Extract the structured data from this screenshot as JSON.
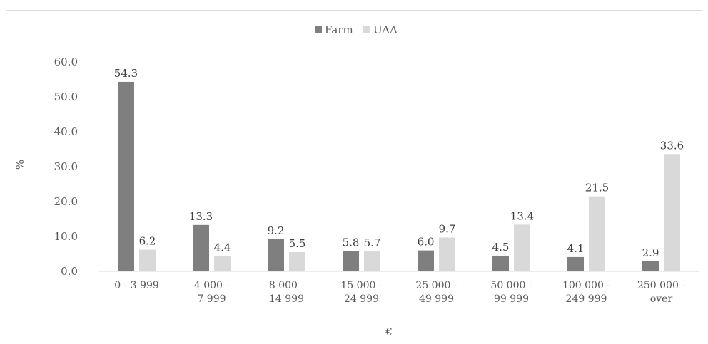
{
  "chart_data": {
    "type": "bar",
    "title": "",
    "xlabel": "€",
    "ylabel": "%",
    "ylim": [
      0,
      60
    ],
    "yticks": [
      "0.0",
      "10.0",
      "20.0",
      "30.0",
      "40.0",
      "50.0",
      "60.0"
    ],
    "legend_position": "top-center",
    "categories": [
      [
        "0 - 3 999"
      ],
      [
        "4 000 -",
        "7 999"
      ],
      [
        "8 000 -",
        "14 999"
      ],
      [
        "15 000 -",
        "24 999"
      ],
      [
        "25 000 -",
        "49 999"
      ],
      [
        "50 000 -",
        "99 999"
      ],
      [
        "100 000 -",
        "249 999"
      ],
      [
        "250 000 -",
        "over"
      ]
    ],
    "series": [
      {
        "name": "Farm",
        "color": "#7f7f7f",
        "values": [
          54.3,
          13.3,
          9.2,
          5.8,
          6.0,
          4.5,
          4.1,
          2.9
        ],
        "labels": [
          "54.3",
          "13.3",
          "9.2",
          "5.8",
          "6.0",
          "4.5",
          "4.1",
          "2.9"
        ]
      },
      {
        "name": "UAA",
        "color": "#d9d9d9",
        "values": [
          6.2,
          4.4,
          5.5,
          5.7,
          9.7,
          13.4,
          21.5,
          33.6
        ],
        "labels": [
          "6.2",
          "4.4",
          "5.5",
          "5.7",
          "9.7",
          "13.4",
          "21.5",
          "33.6"
        ]
      }
    ]
  }
}
